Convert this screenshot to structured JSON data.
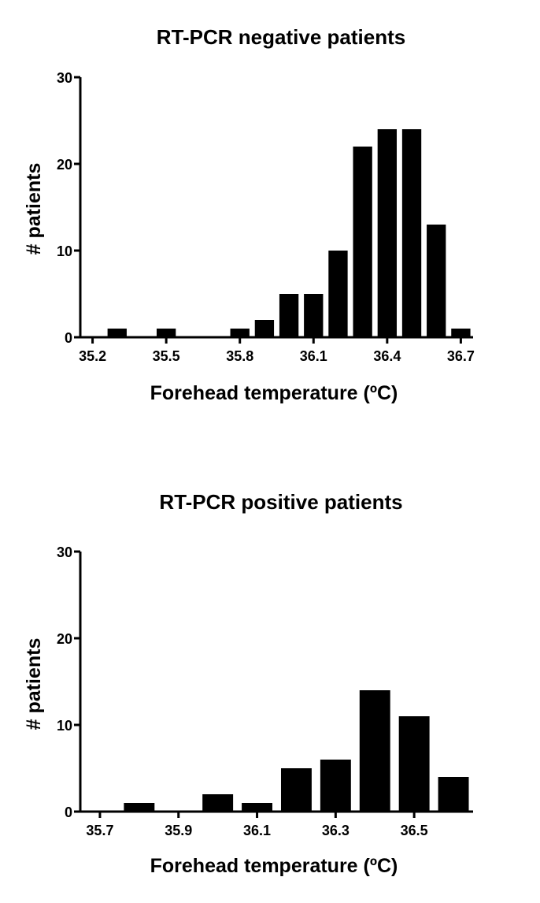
{
  "chart_data": [
    {
      "type": "bar",
      "title": "RT-PCR negative patients",
      "xlabel": "Forehead temperature (ºC)",
      "ylabel": "# patients",
      "ylim": [
        0,
        30
      ],
      "xlim": [
        35.15,
        36.75
      ],
      "bin_width": 0.1,
      "y_ticks": [
        "0",
        "10",
        "20",
        "30"
      ],
      "x_ticks": [
        "35.2",
        "35.5",
        "35.8",
        "36.1",
        "36.4",
        "36.7"
      ],
      "x": [
        35.3,
        35.5,
        35.8,
        35.9,
        36.0,
        36.1,
        36.2,
        36.3,
        36.4,
        36.5,
        36.6,
        36.7
      ],
      "values": [
        1,
        1,
        1,
        2,
        5,
        5,
        10,
        22,
        24,
        24,
        13,
        1
      ],
      "bar_color": "#000000"
    },
    {
      "type": "bar",
      "title": "RT-PCR positive patients",
      "xlabel": "Forehead temperature (ºC)",
      "ylabel": "# patients",
      "ylim": [
        0,
        30
      ],
      "xlim": [
        35.65,
        36.65
      ],
      "bin_width": 0.1,
      "y_ticks": [
        "0",
        "10",
        "20",
        "30"
      ],
      "x_ticks": [
        "35.7",
        "35.9",
        "36.1",
        "36.3",
        "36.5"
      ],
      "x": [
        35.8,
        36.0,
        36.1,
        36.2,
        36.3,
        36.4,
        36.5,
        36.6
      ],
      "values": [
        1,
        2,
        1,
        5,
        6,
        14,
        11,
        4
      ],
      "bar_color": "#000000"
    }
  ]
}
